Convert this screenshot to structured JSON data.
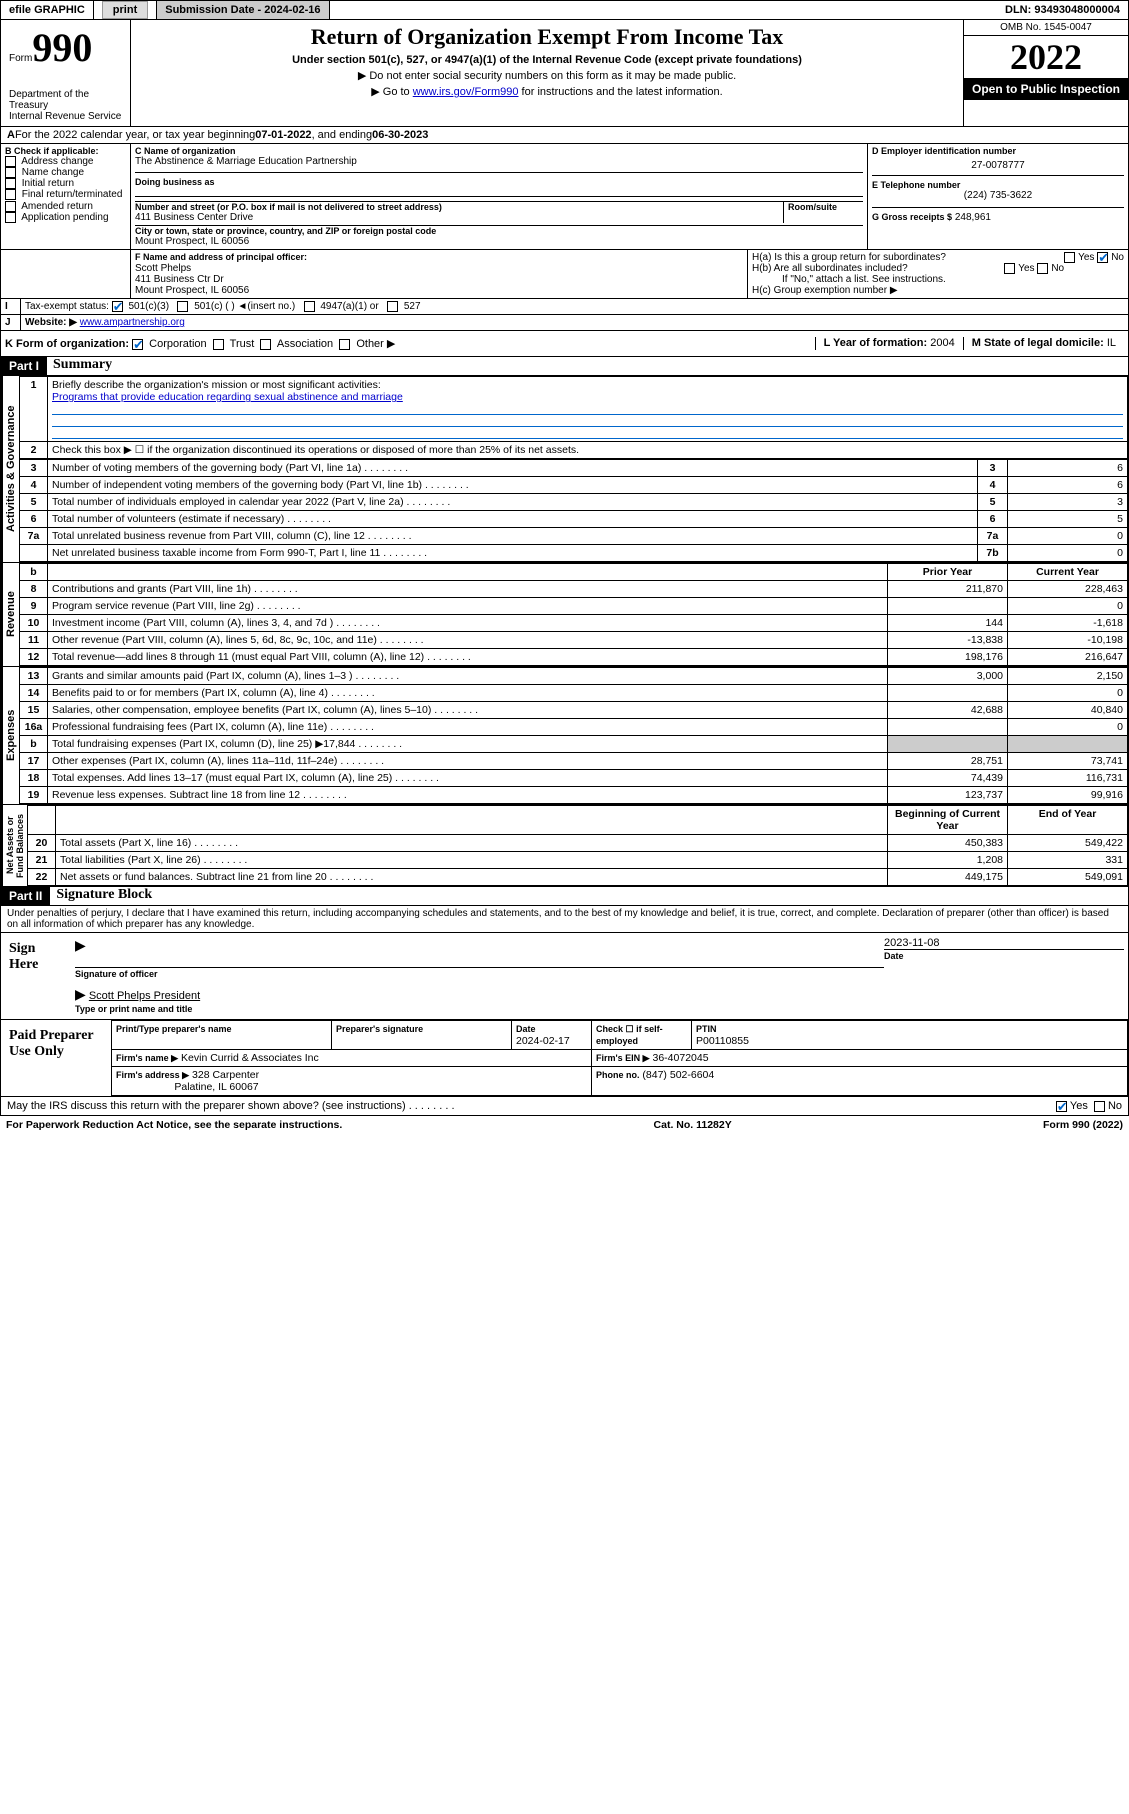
{
  "topbar": {
    "efile": "efile GRAPHIC",
    "print": "print",
    "sub_label": "Submission Date - 2024-02-16",
    "dln": "DLN: 93493048000004"
  },
  "header": {
    "form_small": "Form",
    "form_big": "990",
    "title": "Return of Organization Exempt From Income Tax",
    "subtitle": "Under section 501(c), 527, or 4947(a)(1) of the Internal Revenue Code (except private foundations)",
    "note1": "▶ Do not enter social security numbers on this form as it may be made public.",
    "note2_pre": "▶ Go to ",
    "note2_link": "www.irs.gov/Form990",
    "note2_post": " for instructions and the latest information.",
    "omb": "OMB No. 1545-0047",
    "year": "2022",
    "inspect": "Open to Public Inspection",
    "dept": "Department of the Treasury\nInternal Revenue Service"
  },
  "lineA": {
    "text_pre": "For the 2022 calendar year, or tax year beginning ",
    "begin": "07-01-2022",
    "mid": " , and ending ",
    "end": "06-30-2023"
  },
  "boxB": {
    "label": "B Check if applicable:",
    "items": [
      "Address change",
      "Name change",
      "Initial return",
      "Final return/terminated",
      "Amended return",
      "Application pending"
    ]
  },
  "boxC": {
    "label": "C Name of organization",
    "name": "The Abstinence & Marriage Education Partnership",
    "dba_label": "Doing business as",
    "street_label": "Number and street (or P.O. box if mail is not delivered to street address)",
    "room_label": "Room/suite",
    "street": "411 Business Center Drive",
    "city_label": "City or town, state or province, country, and ZIP or foreign postal code",
    "city": "Mount Prospect, IL  60056"
  },
  "boxD": {
    "label": "D Employer identification number",
    "val": "27-0078777"
  },
  "boxE": {
    "label": "E Telephone number",
    "val": "(224) 735-3622"
  },
  "boxG": {
    "label": "G Gross receipts $",
    "val": "248,961"
  },
  "boxF": {
    "label": "F Name and address of principal officer:",
    "name": "Scott Phelps",
    "addr1": "411 Business Ctr Dr",
    "addr2": "Mount Prospect, IL  60056"
  },
  "boxH": {
    "ha": "H(a)  Is this a group return for subordinates?",
    "hb": "H(b)  Are all subordinates included?",
    "hb_note": "If \"No,\" attach a list. See instructions.",
    "hc": "H(c)  Group exemption number ▶"
  },
  "rowI": {
    "label": "Tax-exempt status:",
    "opts": [
      "501(c)(3)",
      "501(c) (    ) ◄(insert no.)",
      "4947(a)(1) or",
      "527"
    ]
  },
  "rowJ": {
    "label": "Website: ▶",
    "val": "www.ampartnership.org"
  },
  "rowK": {
    "label": "K Form of organization:",
    "opts": [
      "Corporation",
      "Trust",
      "Association",
      "Other ▶"
    ]
  },
  "rowL": {
    "label": "L Year of formation:",
    "val": "2004"
  },
  "rowM": {
    "label": "M State of legal domicile:",
    "val": "IL"
  },
  "part1": {
    "bar": "Part I",
    "title": "Summary"
  },
  "q1": {
    "num": "1",
    "text": "Briefly describe the organization's mission or most significant activities:",
    "answer": "Programs that provide education regarding sexual abstinence and marriage"
  },
  "q2": {
    "num": "2",
    "text": "Check this box ▶ ☐  if the organization discontinued its operations or disposed of more than 25% of its net assets."
  },
  "gov_rows": [
    {
      "n": "3",
      "t": "Number of voting members of the governing body (Part VI, line 1a)",
      "b": "3",
      "v": "6"
    },
    {
      "n": "4",
      "t": "Number of independent voting members of the governing body (Part VI, line 1b)",
      "b": "4",
      "v": "6"
    },
    {
      "n": "5",
      "t": "Total number of individuals employed in calendar year 2022 (Part V, line 2a)",
      "b": "5",
      "v": "3"
    },
    {
      "n": "6",
      "t": "Total number of volunteers (estimate if necessary)",
      "b": "6",
      "v": "5"
    },
    {
      "n": "7a",
      "t": "Total unrelated business revenue from Part VIII, column (C), line 12",
      "b": "7a",
      "v": "0"
    },
    {
      "n": "",
      "t": "Net unrelated business taxable income from Form 990-T, Part I, line 11",
      "b": "7b",
      "v": "0"
    }
  ],
  "headers2": {
    "num": "b",
    "py": "Prior Year",
    "cy": "Current Year"
  },
  "rev_rows": [
    {
      "n": "8",
      "t": "Contributions and grants (Part VIII, line 1h)",
      "py": "211,870",
      "cy": "228,463"
    },
    {
      "n": "9",
      "t": "Program service revenue (Part VIII, line 2g)",
      "py": "",
      "cy": "0"
    },
    {
      "n": "10",
      "t": "Investment income (Part VIII, column (A), lines 3, 4, and 7d )",
      "py": "144",
      "cy": "-1,618"
    },
    {
      "n": "11",
      "t": "Other revenue (Part VIII, column (A), lines 5, 6d, 8c, 9c, 10c, and 11e)",
      "py": "-13,838",
      "cy": "-10,198"
    },
    {
      "n": "12",
      "t": "Total revenue—add lines 8 through 11 (must equal Part VIII, column (A), line 12)",
      "py": "198,176",
      "cy": "216,647"
    }
  ],
  "exp_rows": [
    {
      "n": "13",
      "t": "Grants and similar amounts paid (Part IX, column (A), lines 1–3 )",
      "py": "3,000",
      "cy": "2,150"
    },
    {
      "n": "14",
      "t": "Benefits paid to or for members (Part IX, column (A), line 4)",
      "py": "",
      "cy": "0"
    },
    {
      "n": "15",
      "t": "Salaries, other compensation, employee benefits (Part IX, column (A), lines 5–10)",
      "py": "42,688",
      "cy": "40,840"
    },
    {
      "n": "16a",
      "t": "Professional fundraising fees (Part IX, column (A), line 11e)",
      "py": "",
      "cy": "0"
    },
    {
      "n": "b",
      "t": "Total fundraising expenses (Part IX, column (D), line 25) ▶17,844",
      "py": "shade",
      "cy": "shade"
    },
    {
      "n": "17",
      "t": "Other expenses (Part IX, column (A), lines 11a–11d, 11f–24e)",
      "py": "28,751",
      "cy": "73,741"
    },
    {
      "n": "18",
      "t": "Total expenses. Add lines 13–17 (must equal Part IX, column (A), line 25)",
      "py": "74,439",
      "cy": "116,731"
    },
    {
      "n": "19",
      "t": "Revenue less expenses. Subtract line 18 from line 12",
      "py": "123,737",
      "cy": "99,916"
    }
  ],
  "headers3": {
    "by": "Beginning of Current Year",
    "ey": "End of Year"
  },
  "net_rows": [
    {
      "n": "20",
      "t": "Total assets (Part X, line 16)",
      "py": "450,383",
      "cy": "549,422"
    },
    {
      "n": "21",
      "t": "Total liabilities (Part X, line 26)",
      "py": "1,208",
      "cy": "331"
    },
    {
      "n": "22",
      "t": "Net assets or fund balances. Subtract line 21 from line 20",
      "py": "449,175",
      "cy": "549,091"
    }
  ],
  "side_labels": {
    "gov": "Activities & Governance",
    "rev": "Revenue",
    "exp": "Expenses",
    "net": "Net Assets or\nFund Balances"
  },
  "part2": {
    "bar": "Part II",
    "title": "Signature Block"
  },
  "sig": {
    "decl": "Under penalties of perjury, I declare that I have examined this return, including accompanying schedules and statements, and to the best of my knowledge and belief, it is true, correct, and complete. Declaration of preparer (other than officer) is based on all information of which preparer has any knowledge.",
    "sign_here": "Sign Here",
    "sig_officer": "Signature of officer",
    "date_label": "Date",
    "sig_date": "2023-11-08",
    "officer_name": "Scott Phelps  President",
    "name_title_label": "Type or print name and title",
    "paid": "Paid Preparer Use Only",
    "pp_name_label": "Print/Type preparer's name",
    "pp_sig_label": "Preparer's signature",
    "pp_date_label": "Date",
    "pp_date": "2024-02-17",
    "pp_check": "Check ☐ if self-employed",
    "ptin_label": "PTIN",
    "ptin": "P00110855",
    "firm_name_label": "Firm's name    ▶",
    "firm_name": "Kevin Currid & Associates Inc",
    "firm_ein_label": "Firm's EIN ▶",
    "firm_ein": "36-4072045",
    "firm_addr_label": "Firm's address ▶",
    "firm_addr1": "328 Carpenter",
    "firm_addr2": "Palatine, IL  60067",
    "phone_label": "Phone no.",
    "phone": "(847) 502-6604",
    "discuss": "May the IRS discuss this return with the preparer shown above? (see instructions)"
  },
  "footer": {
    "left": "For Paperwork Reduction Act Notice, see the separate instructions.",
    "mid": "Cat. No. 11282Y",
    "right": "Form 990 (2022)"
  }
}
